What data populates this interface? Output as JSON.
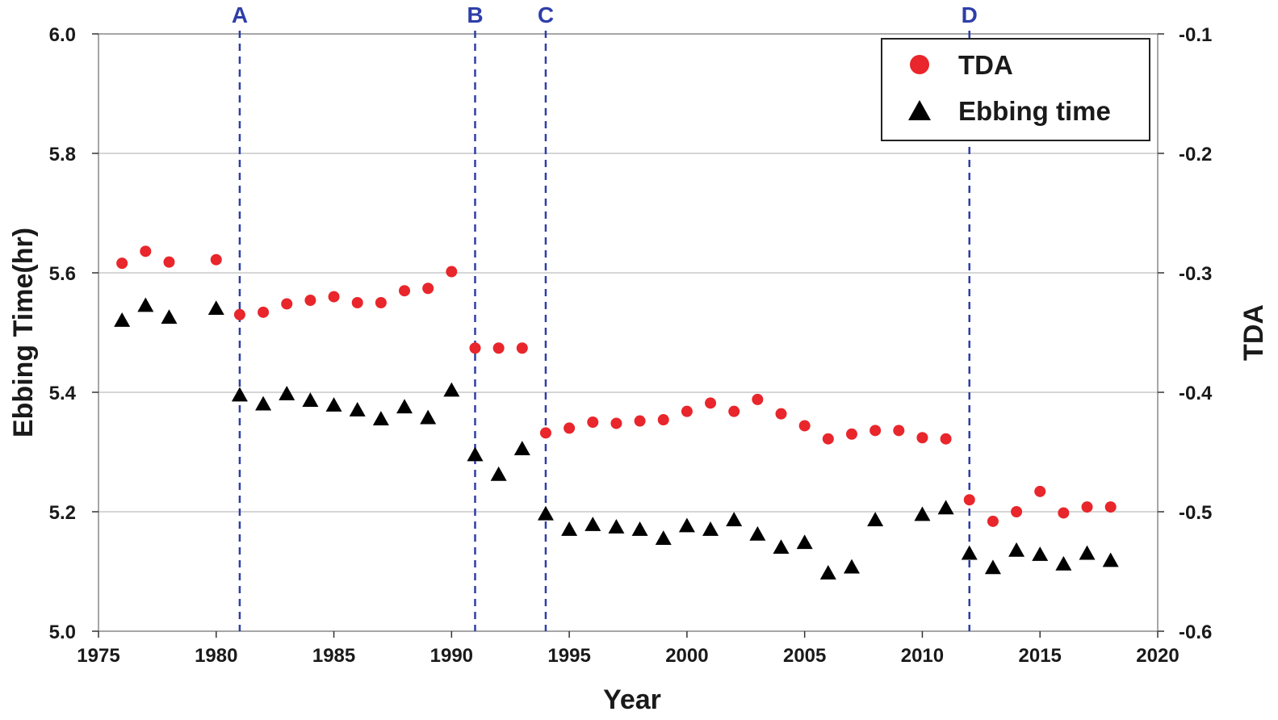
{
  "chart_data": {
    "type": "scatter",
    "xlabel": "Year",
    "ylabel": "Ebbing Time(hr)",
    "y2label": "TDA",
    "xlim": [
      1975,
      2020
    ],
    "ylim": [
      5.0,
      6.0
    ],
    "y2lim": [
      -0.6,
      -0.1
    ],
    "xticks": [
      1975,
      1980,
      1985,
      1990,
      1995,
      2000,
      2005,
      2010,
      2015,
      2020
    ],
    "yticks": [
      5.0,
      5.2,
      5.4,
      5.6,
      5.8,
      6.0
    ],
    "y2ticks": [
      -0.6,
      -0.5,
      -0.4,
      -0.3,
      -0.2,
      -0.1
    ],
    "x_tick_labels": [
      "1975",
      "1980",
      "1985",
      "1990",
      "1995",
      "2000",
      "2005",
      "2010",
      "2015",
      "2020"
    ],
    "y_tick_labels": [
      "5.0",
      "5.2",
      "5.4",
      "5.6",
      "5.8",
      "6.0"
    ],
    "y2_tick_labels": [
      "-0.6",
      "-0.5",
      "-0.4",
      "-0.3",
      "-0.2",
      "-0.1"
    ],
    "grid": "horizontal",
    "legend_position": "top-right",
    "vlines": [
      {
        "label": "A",
        "x": 1981
      },
      {
        "label": "B",
        "x": 1991
      },
      {
        "label": "C",
        "x": 1994
      },
      {
        "label": "D",
        "x": 2012
      }
    ],
    "series": [
      {
        "name": "TDA",
        "axis": "right",
        "marker": "circle",
        "color": "#e8262b",
        "x": [
          1976,
          1977,
          1978,
          1980,
          1981,
          1982,
          1983,
          1984,
          1985,
          1986,
          1987,
          1988,
          1989,
          1990,
          1991,
          1992,
          1993,
          1994,
          1995,
          1996,
          1997,
          1998,
          1999,
          2000,
          2001,
          2002,
          2003,
          2004,
          2005,
          2006,
          2007,
          2008,
          2009,
          2010,
          2011,
          2012,
          2013,
          2014,
          2015,
          2016,
          2017,
          2018
        ],
        "y": [
          -0.292,
          -0.282,
          -0.291,
          -0.289,
          -0.335,
          -0.333,
          -0.326,
          -0.323,
          -0.32,
          -0.325,
          -0.325,
          -0.315,
          -0.313,
          -0.299,
          -0.363,
          -0.363,
          -0.363,
          -0.434,
          -0.43,
          -0.425,
          -0.426,
          -0.424,
          -0.423,
          -0.416,
          -0.409,
          -0.416,
          -0.406,
          -0.418,
          -0.428,
          -0.439,
          -0.435,
          -0.432,
          -0.432,
          -0.438,
          -0.439,
          -0.49,
          -0.508,
          -0.5,
          -0.483,
          -0.501,
          -0.496,
          -0.496
        ]
      },
      {
        "name": "Ebbing time",
        "axis": "left",
        "marker": "triangle",
        "color": "#000000",
        "x": [
          1976,
          1977,
          1978,
          1980,
          1981,
          1982,
          1983,
          1984,
          1985,
          1986,
          1987,
          1988,
          1989,
          1990,
          1991,
          1992,
          1993,
          1994,
          1995,
          1996,
          1997,
          1998,
          1999,
          2000,
          2001,
          2002,
          2003,
          2004,
          2005,
          2006,
          2007,
          2008,
          2009,
          2010,
          2011,
          2012,
          2013,
          2014,
          2015,
          2016,
          2017,
          2018
        ],
        "y": [
          5.52,
          5.545,
          5.525,
          5.54,
          5.395,
          5.38,
          5.397,
          5.386,
          5.378,
          5.37,
          5.355,
          5.375,
          5.357,
          5.403,
          5.295,
          5.262,
          5.305,
          5.196,
          5.17,
          5.178,
          5.174,
          5.17,
          5.155,
          5.176,
          5.17,
          5.186,
          5.162,
          5.14,
          5.148,
          5.097,
          5.107,
          5.186,
          null,
          5.195,
          5.206,
          5.13,
          5.106,
          5.135,
          5.128,
          5.112,
          5.13,
          5.118
        ]
      }
    ]
  }
}
